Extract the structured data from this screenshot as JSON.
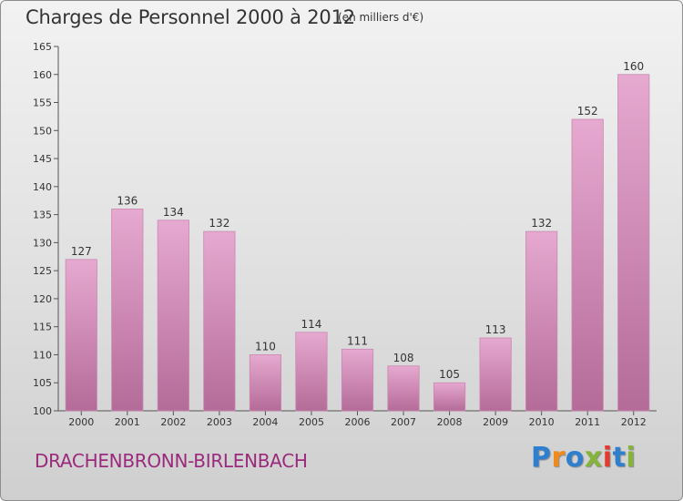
{
  "header": {
    "title": "Charges de Personnel 2000 à 2012",
    "unit": "(en milliers d'€)"
  },
  "footer": {
    "commune": "DRACHENBRONN-BIRLENBACH"
  },
  "logo": {
    "text": "Proxiti",
    "letters": [
      {
        "ch": "P",
        "color": "#2f7fcf"
      },
      {
        "ch": "r",
        "color": "#f08a1c"
      },
      {
        "ch": "o",
        "color": "#2f7fcf"
      },
      {
        "ch": "x",
        "color": "#86b33a"
      },
      {
        "ch": "i",
        "color": "#e23b2d"
      },
      {
        "ch": "t",
        "color": "#2f7fcf"
      },
      {
        "ch": "i",
        "color": "#86b33a"
      }
    ]
  },
  "colors": {
    "bar_top": "#e6a9d0",
    "bar_bottom": "#b46b98",
    "commune_text": "#9b2a7c"
  },
  "chart_data": {
    "type": "bar",
    "title": "Charges de Personnel 2000 à 2012",
    "subtitle": "(en milliers d'€)",
    "categories": [
      "2000",
      "2001",
      "2002",
      "2003",
      "2004",
      "2005",
      "2006",
      "2007",
      "2008",
      "2009",
      "2010",
      "2011",
      "2012"
    ],
    "values": [
      127,
      136,
      134,
      132,
      110,
      114,
      111,
      108,
      105,
      113,
      132,
      152,
      160
    ],
    "ylim": [
      100,
      165
    ],
    "yticks": [
      100,
      105,
      110,
      115,
      120,
      125,
      130,
      135,
      140,
      145,
      150,
      155,
      160,
      165
    ],
    "grid": false,
    "data_labels": true
  }
}
